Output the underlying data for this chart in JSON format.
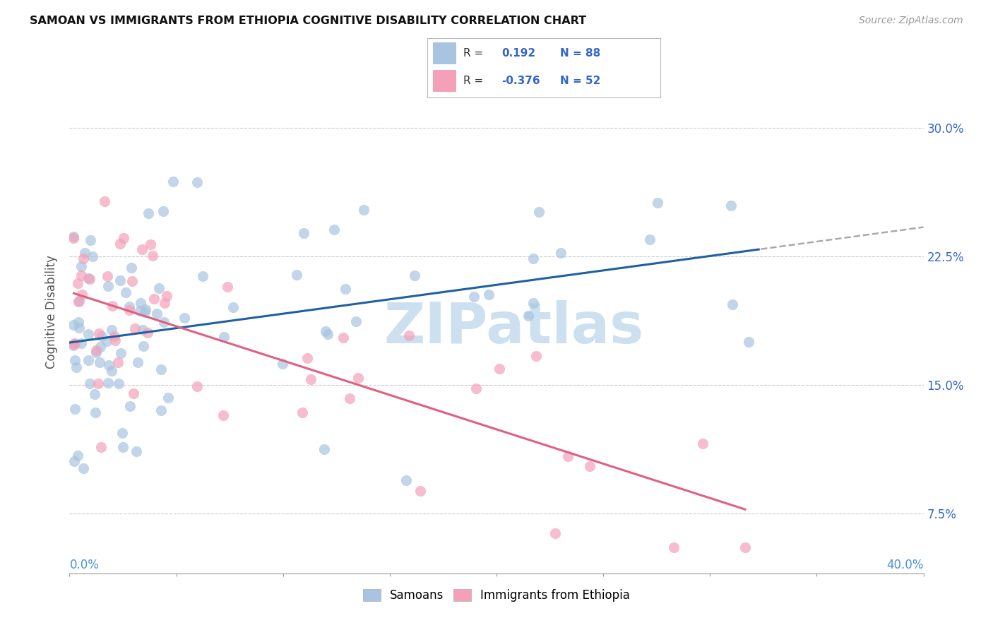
{
  "title": "SAMOAN VS IMMIGRANTS FROM ETHIOPIA COGNITIVE DISABILITY CORRELATION CHART",
  "source": "Source: ZipAtlas.com",
  "ylabel": "Cognitive Disability",
  "ytick_labels": [
    "7.5%",
    "15.0%",
    "22.5%",
    "30.0%"
  ],
  "ytick_values": [
    0.075,
    0.15,
    0.225,
    0.3
  ],
  "xlim": [
    0.0,
    0.4
  ],
  "ylim": [
    0.04,
    0.345
  ],
  "samoan_R": 0.192,
  "samoan_N": 88,
  "ethiopia_R": -0.376,
  "ethiopia_N": 52,
  "samoan_color": "#a8c4e0",
  "ethiopia_color": "#f4a0b8",
  "samoan_line_color": "#2060a0",
  "ethiopia_line_color": "#e06080",
  "dashed_line_color": "#aaaaaa",
  "watermark_text": "ZIPatlas",
  "watermark_color": "#cce0f0",
  "legend_samoan_color": "#a8c4e0",
  "legend_ethiopia_color": "#f4a0b8",
  "legend_R1": "0.192",
  "legend_N1": "88",
  "legend_R2": "-0.376",
  "legend_N2": "52",
  "legend_text_color": "#3366cc",
  "samoan_seed": 10,
  "ethiopia_seed": 20
}
